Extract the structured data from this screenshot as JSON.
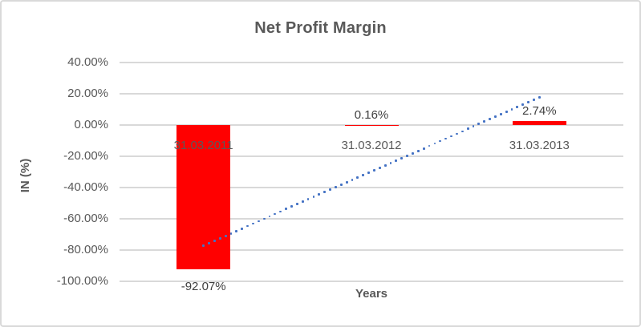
{
  "chart_data": {
    "type": "bar",
    "title": "Net Profit Margin",
    "xlabel": "Years",
    "ylabel": "IN (%)",
    "categories": [
      "31.03.2011",
      "31.03.2012",
      "31.03.2013"
    ],
    "values": [
      -92.07,
      0.16,
      2.74
    ],
    "data_labels": [
      "-92.07%",
      "0.16%",
      "2.74%"
    ],
    "ylim": [
      -100,
      40
    ],
    "yticks": [
      40,
      20,
      0,
      -20,
      -40,
      -60,
      -80,
      -100
    ],
    "ytick_labels": [
      "40.00%",
      "20.00%",
      "0.00%",
      "-20.00%",
      "-40.00%",
      "-60.00%",
      "-80.00%",
      "-100.00%"
    ],
    "grid": true,
    "legend": "none",
    "bar_color": "#FF0000",
    "trendline": {
      "type": "linear",
      "style": "dotted",
      "color": "#4472C4",
      "start_value": -77.1,
      "end_value": 17.7
    }
  },
  "colors": {
    "background": "#FFFFFF",
    "border": "#D9D9D9",
    "gridline": "#D9D9D9",
    "axis_text": "#595959",
    "title_text": "#595959",
    "data_label_text": "#404040"
  }
}
